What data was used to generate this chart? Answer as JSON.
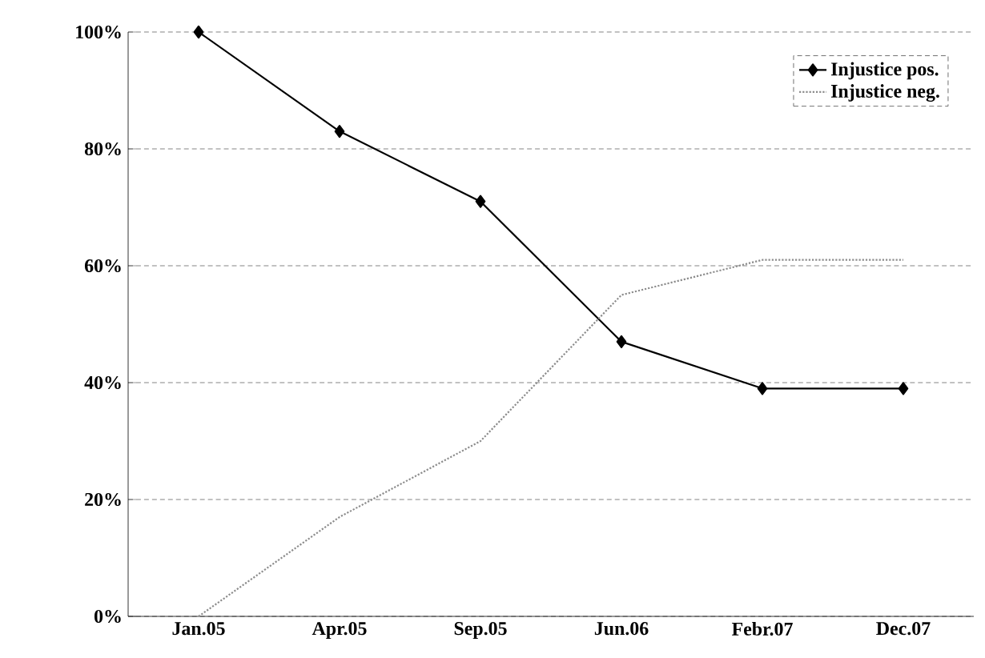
{
  "chart_data": {
    "type": "line",
    "categories": [
      "Jan.05",
      "Apr.05",
      "Sep.05",
      "Jun.06",
      "Febr.07",
      "Dec.07"
    ],
    "series": [
      {
        "name": "Injustice pos.",
        "color": "#000000",
        "values": [
          100,
          83,
          71,
          47,
          39,
          39
        ],
        "marker": "diamond",
        "line_style": "solid"
      },
      {
        "name": "Injustice neg.",
        "color": "#8c8c8c",
        "values": [
          0,
          17,
          30,
          55,
          61,
          61
        ],
        "marker": "none",
        "line_style": "dotted"
      }
    ],
    "ylim": [
      0,
      100
    ],
    "yticks": [
      {
        "value": 0,
        "label": "0%"
      },
      {
        "value": 20,
        "label": "20%"
      },
      {
        "value": 40,
        "label": "40%"
      },
      {
        "value": 60,
        "label": "60%"
      },
      {
        "value": 80,
        "label": "80%"
      },
      {
        "value": 100,
        "label": "100%"
      }
    ],
    "grid": "y",
    "legend": "top right"
  }
}
